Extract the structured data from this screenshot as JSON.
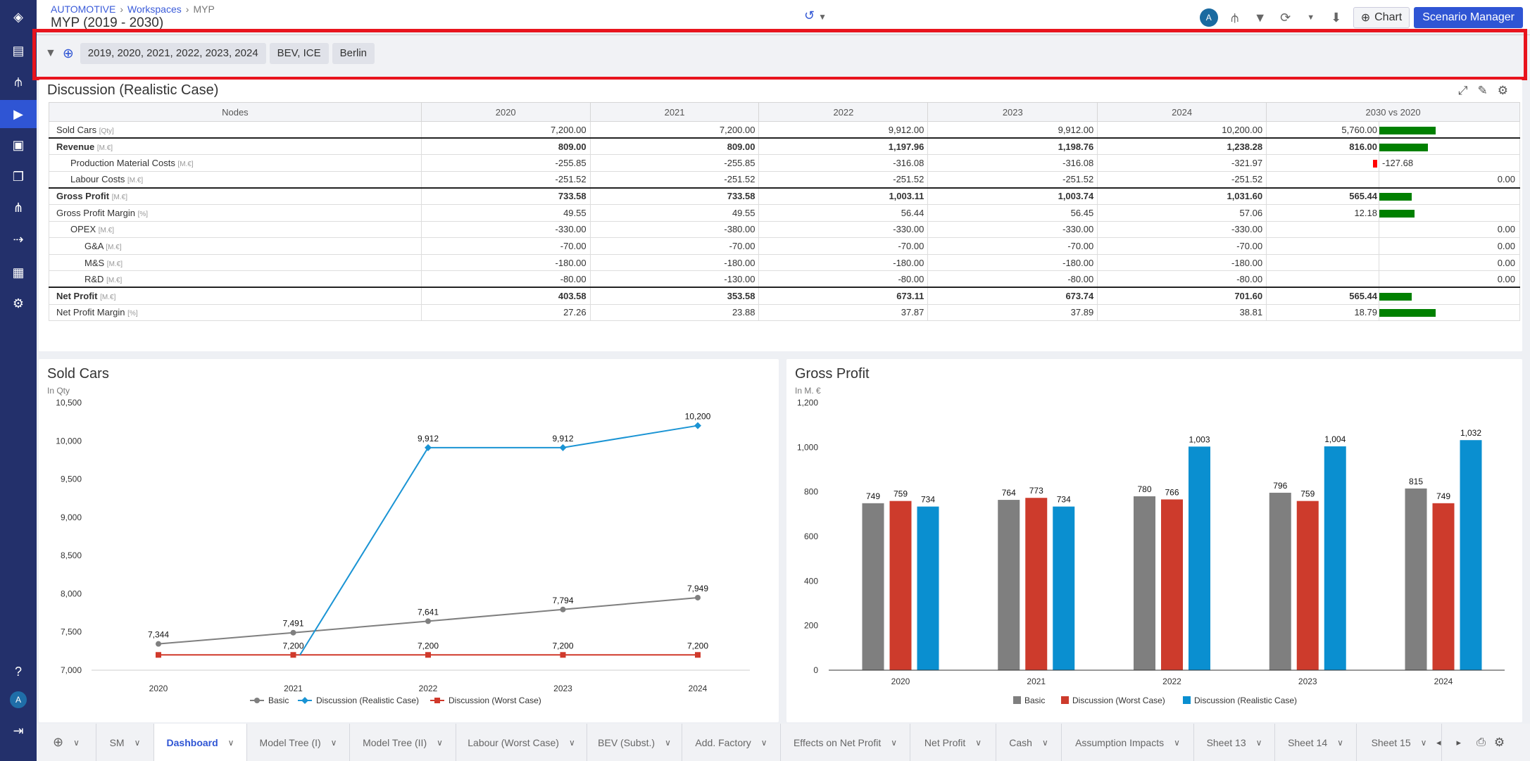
{
  "app": {
    "breadcrumb": [
      "AUTOMOTIVE",
      "Workspaces",
      "MYP"
    ],
    "title": "MYP (2019 - 2030)"
  },
  "header": {
    "avatar": "A",
    "chart_label": "Chart",
    "scenario_manager_label": "Scenario Manager"
  },
  "sidebar": {
    "avatar": "A",
    "items": [
      "layers-logo",
      "archive",
      "sitemap",
      "play",
      "video",
      "copy",
      "hierarchy",
      "arrow-right",
      "table",
      "settings"
    ],
    "active": "play"
  },
  "filters": {
    "chips": [
      "2019, 2020, 2021, 2022, 2023, 2024",
      "BEV, ICE",
      "Berlin"
    ]
  },
  "table_panel": {
    "title": "Discussion (Realistic Case)",
    "columns": [
      "Nodes",
      "2020",
      "2021",
      "2022",
      "2023",
      "2024",
      "2030 vs 2020"
    ],
    "rows": [
      {
        "name": "Sold Cars",
        "unit": "[Qty]",
        "indent": 0,
        "bold": false,
        "values": [
          "7,200.00",
          "7,200.00",
          "9,912.00",
          "9,912.00",
          "10,200.00"
        ],
        "delta": "5,760.00",
        "bar": 1.0
      },
      {
        "name": "Revenue",
        "unit": "[M.€]",
        "indent": 0,
        "bold": true,
        "values": [
          "809.00",
          "809.00",
          "1,197.96",
          "1,198.76",
          "1,238.28"
        ],
        "delta": "816.00",
        "bar": 0.86
      },
      {
        "name": "Production Material Costs",
        "unit": "[M.€]",
        "indent": 1,
        "bold": false,
        "values": [
          "-255.85",
          "-255.85",
          "-316.08",
          "-316.08",
          "-321.97"
        ],
        "delta": "-127.68",
        "bar": -0.08
      },
      {
        "name": "Labour Costs",
        "unit": "[M.€]",
        "indent": 1,
        "bold": false,
        "values": [
          "-251.52",
          "-251.52",
          "-251.52",
          "-251.52",
          "-251.52"
        ],
        "delta": "0.00",
        "bar": 0
      },
      {
        "name": "Gross Profit",
        "unit": "[M.€]",
        "indent": 0,
        "bold": true,
        "values": [
          "733.58",
          "733.58",
          "1,003.11",
          "1,003.74",
          "1,031.60"
        ],
        "delta": "565.44",
        "bar": 0.57
      },
      {
        "name": "Gross Profit Margin",
        "unit": "[%]",
        "indent": 0,
        "bold": false,
        "values": [
          "49.55",
          "49.55",
          "56.44",
          "56.45",
          "57.06"
        ],
        "delta": "12.18",
        "bar": 0.62
      },
      {
        "name": "OPEX",
        "unit": "[M.€]",
        "indent": 1,
        "bold": false,
        "values": [
          "-330.00",
          "-380.00",
          "-330.00",
          "-330.00",
          "-330.00"
        ],
        "delta": "0.00",
        "bar": 0
      },
      {
        "name": "G&A",
        "unit": "[M.€]",
        "indent": 2,
        "bold": false,
        "values": [
          "-70.00",
          "-70.00",
          "-70.00",
          "-70.00",
          "-70.00"
        ],
        "delta": "0.00",
        "bar": 0
      },
      {
        "name": "M&S",
        "unit": "[M.€]",
        "indent": 2,
        "bold": false,
        "values": [
          "-180.00",
          "-180.00",
          "-180.00",
          "-180.00",
          "-180.00"
        ],
        "delta": "0.00",
        "bar": 0
      },
      {
        "name": "R&D",
        "unit": "[M.€]",
        "indent": 2,
        "bold": false,
        "values": [
          "-80.00",
          "-130.00",
          "-80.00",
          "-80.00",
          "-80.00"
        ],
        "delta": "0.00",
        "bar": 0
      },
      {
        "name": "Net Profit",
        "unit": "[M.€]",
        "indent": 0,
        "bold": true,
        "values": [
          "403.58",
          "353.58",
          "673.11",
          "673.74",
          "701.60"
        ],
        "delta": "565.44",
        "bar": 0.57
      },
      {
        "name": "Net Profit Margin",
        "unit": "[%]",
        "indent": 0,
        "bold": false,
        "values": [
          "27.26",
          "23.88",
          "37.87",
          "37.89",
          "38.81"
        ],
        "delta": "18.79",
        "bar": 1.0
      }
    ],
    "colors": {
      "positive": "#008000",
      "negative": "#ff0000"
    }
  },
  "chart_data": [
    {
      "type": "line",
      "title": "Sold Cars",
      "subtitle": "In Qty",
      "categories": [
        "2020",
        "2021",
        "2022",
        "2023",
        "2024"
      ],
      "ylim": [
        7000,
        10500
      ],
      "yticks": [
        7000,
        7500,
        8000,
        8500,
        9000,
        9500,
        10000,
        10500
      ],
      "grid": false,
      "legend": "bottom",
      "series": [
        {
          "name": "Basic",
          "color": "#7f7f7f",
          "marker": "circle",
          "values": [
            7344,
            7491,
            7641,
            7794,
            7949
          ],
          "labels": [
            "7,344",
            "7,491",
            "7,641",
            "7,794",
            "7,949"
          ]
        },
        {
          "name": "Discussion (Realistic Case)",
          "color": "#1a94d4",
          "marker": "diamond",
          "values": [
            7200,
            7200,
            9912,
            9912,
            10200
          ],
          "labels": [
            "",
            "",
            "9,912",
            "9,912",
            "10,200"
          ]
        },
        {
          "name": "Discussion (Worst Case)",
          "color": "#d0392b",
          "marker": "square",
          "values": [
            7200,
            7200,
            7200,
            7200,
            7200
          ],
          "labels": [
            "",
            "7,200",
            "7,200",
            "7,200",
            "7,200"
          ]
        }
      ]
    },
    {
      "type": "bar",
      "title": "Gross Profit",
      "subtitle": "In M. €",
      "categories": [
        "2020",
        "2021",
        "2022",
        "2023",
        "2024"
      ],
      "ylim": [
        0,
        1200
      ],
      "yticks": [
        0,
        200,
        400,
        600,
        800,
        1000,
        1200
      ],
      "grid": false,
      "legend": "bottom",
      "series": [
        {
          "name": "Basic",
          "color": "#7f7f7f",
          "values": [
            749,
            764,
            780,
            796,
            815
          ]
        },
        {
          "name": "Discussion (Worst Case)",
          "color": "#cd3b2c",
          "values": [
            759,
            773,
            766,
            759,
            749
          ]
        },
        {
          "name": "Discussion (Realistic Case)",
          "color": "#0a8fd0",
          "values": [
            734,
            734,
            1003,
            1004,
            1032
          ]
        }
      ]
    }
  ],
  "tabs": [
    {
      "label": "SM"
    },
    {
      "label": "Dashboard",
      "active": true
    },
    {
      "label": "Model Tree (I)"
    },
    {
      "label": "Model Tree (II)"
    },
    {
      "label": "Labour (Worst Case)"
    },
    {
      "label": "BEV (Subst.)"
    },
    {
      "label": "Add. Factory"
    },
    {
      "label": "Effects on Net Profit"
    },
    {
      "label": "Net Profit"
    },
    {
      "label": "Cash"
    },
    {
      "label": "Assumption Impacts"
    },
    {
      "label": "Sheet 13"
    },
    {
      "label": "Sheet 14"
    },
    {
      "label": "Sheet 15"
    }
  ]
}
